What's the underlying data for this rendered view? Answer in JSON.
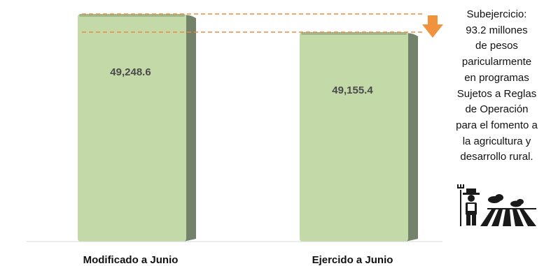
{
  "chart_data": {
    "type": "bar",
    "categories": [
      "Modificado a Junio",
      "Ejercido a Junio"
    ],
    "values": [
      49248.6,
      49155.4
    ],
    "value_labels": [
      "49,248.6",
      "49,155.4"
    ],
    "difference": 93.2,
    "title": "",
    "xlabel": "",
    "ylabel": "",
    "ylim": [
      0,
      49248.6
    ],
    "grid": false,
    "legend": "none",
    "colors": {
      "bar_face": "#c3d9a8",
      "bar_side": "#73836a",
      "bar_top": "#9fb78a",
      "reference_line": "#f08a3c",
      "arrow": "#f0933c"
    }
  },
  "annotation": {
    "lines": [
      "Subejercicio:",
      "93.2 millones",
      "de pesos",
      "paricularmente",
      "en programas",
      "Sujetos a Reglas",
      "de Operación",
      "para el fomento a",
      "la agricultura y",
      "desarrollo rural."
    ]
  },
  "icons": {
    "arrow": "down-arrow-icon",
    "farmer": "farmer-field-icon"
  }
}
